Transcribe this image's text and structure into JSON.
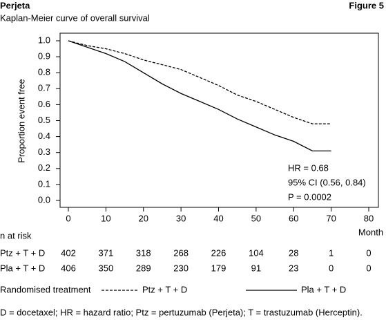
{
  "chart_data": {
    "type": "line",
    "header": "Perjeta",
    "figure_label": "Figure 5",
    "title": "Kaplan-Meier curve of overall survival",
    "ylabel": "Proportion event free",
    "xlabel": "Month",
    "x": [
      0,
      5,
      10,
      15,
      20,
      25,
      30,
      35,
      40,
      45,
      50,
      55,
      60,
      65,
      70
    ],
    "series": [
      {
        "name": "Ptz + T + D",
        "color": "#000000",
        "line_style": "dashed",
        "values": [
          1.0,
          0.97,
          0.95,
          0.92,
          0.88,
          0.85,
          0.82,
          0.77,
          0.72,
          0.66,
          0.62,
          0.57,
          0.52,
          0.48,
          0.48
        ]
      },
      {
        "name": "Pla + T + D",
        "color": "#000000",
        "line_style": "solid",
        "values": [
          1.0,
          0.96,
          0.92,
          0.87,
          0.8,
          0.73,
          0.67,
          0.62,
          0.57,
          0.51,
          0.46,
          0.41,
          0.37,
          0.31,
          0.31
        ]
      }
    ],
    "xlim": [
      0,
      80
    ],
    "xticks": [
      0,
      10,
      20,
      30,
      40,
      50,
      60,
      70,
      80
    ],
    "ylim": [
      0,
      1
    ],
    "yticks": [
      {
        "value": 0,
        "label": "0.0"
      },
      0.1,
      0.2,
      0.3,
      0.4,
      0.5,
      0.6,
      0.7,
      0.8,
      0.9,
      {
        "value": 1,
        "label": "1.0"
      }
    ],
    "annotations": [
      "HR = 0.68",
      "95% CI (0.56, 0.84)",
      "P = 0.0002"
    ],
    "risk_table_title": "n at risk",
    "at_risk": [
      [
        402,
        371,
        318,
        268,
        226,
        104,
        28,
        1,
        0
      ],
      [
        406,
        350,
        289,
        230,
        179,
        91,
        23,
        0,
        0
      ]
    ],
    "legend_title": "Randomised treatment",
    "footnote": "D = docetaxel; HR = hazard ratio; Ptz = pertuzumab (Perjeta); T = trastuzumab (Herceptin)."
  }
}
